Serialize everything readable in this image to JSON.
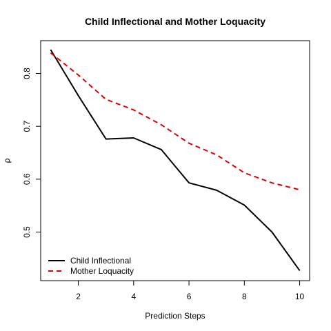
{
  "chart_data": {
    "type": "line",
    "title": "Child Inflectional and Mother Loquacity",
    "xlabel": "Prediction Steps",
    "ylabel": "ρ",
    "xlim": [
      0.64,
      10.36
    ],
    "ylim": [
      0.408,
      0.862
    ],
    "xticks": [
      2,
      4,
      6,
      8,
      10
    ],
    "yticks": [
      0.5,
      0.6,
      0.7,
      0.8
    ],
    "x": [
      1,
      2,
      3,
      4,
      5,
      6,
      7,
      8,
      9,
      10
    ],
    "series": [
      {
        "name": "Child Inflectional",
        "color": "#000000",
        "dash": "solid",
        "values": [
          0.845,
          0.758,
          0.676,
          0.678,
          0.656,
          0.593,
          0.579,
          0.551,
          0.5,
          0.427
        ]
      },
      {
        "name": "Mother Loquacity",
        "color": "#dd0000",
        "dash": "dashed",
        "values": [
          0.839,
          0.797,
          0.751,
          0.731,
          0.703,
          0.668,
          0.646,
          0.612,
          0.593,
          0.58
        ]
      }
    ],
    "legend_position": "bottom-left"
  }
}
